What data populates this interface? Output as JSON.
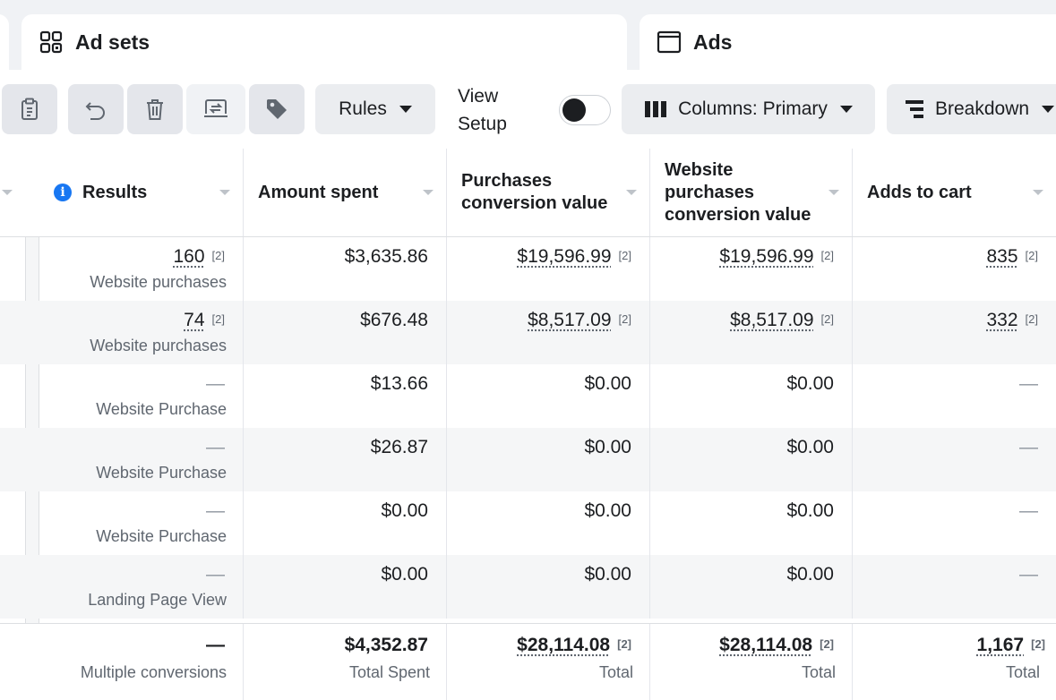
{
  "tabs": {
    "ad_sets": "Ad sets",
    "ads": "Ads"
  },
  "toolbar": {
    "rules_label": "Rules",
    "view_setup_line1": "View",
    "view_setup_line2": "Setup",
    "view_setup_toggle_on": false,
    "columns_label": "Columns: Primary",
    "breakdown_label": "Breakdown"
  },
  "table": {
    "headers": {
      "results": "Results",
      "amount_spent": "Amount spent",
      "purchases_cv_1": "Purchases",
      "purchases_cv_2": "conversion value",
      "website_cv_1": "Website",
      "website_cv_2": "purchases",
      "website_cv_3": "conversion value",
      "adds_to_cart": "Adds to cart"
    },
    "rows": [
      {
        "result": "160",
        "result_sup": "[2]",
        "result_type": "Website purchases",
        "amount": "$3,635.86",
        "pcv": "$19,596.99",
        "pcv_sup": "[2]",
        "wpcv": "$19,596.99",
        "wpcv_sup": "[2]",
        "atc": "835",
        "atc_sup": "[2]"
      },
      {
        "result": "74",
        "result_sup": "[2]",
        "result_type": "Website purchases",
        "amount": "$676.48",
        "pcv": "$8,517.09",
        "pcv_sup": "[2]",
        "wpcv": "$8,517.09",
        "wpcv_sup": "[2]",
        "atc": "332",
        "atc_sup": "[2]"
      },
      {
        "result": "—",
        "result_type": "Website Purchase",
        "amount": "$13.66",
        "pcv": "$0.00",
        "wpcv": "$0.00",
        "atc": "—"
      },
      {
        "result": "—",
        "result_type": "Website Purchase",
        "amount": "$26.87",
        "pcv": "$0.00",
        "wpcv": "$0.00",
        "atc": "—"
      },
      {
        "result": "—",
        "result_type": "Website Purchase",
        "amount": "$0.00",
        "pcv": "$0.00",
        "wpcv": "$0.00",
        "atc": "—"
      },
      {
        "result": "—",
        "result_type": "Landing Page View",
        "amount": "$0.00",
        "pcv": "$0.00",
        "wpcv": "$0.00",
        "atc": "—"
      }
    ],
    "totals": {
      "result": "—",
      "result_type": "Multiple conversions",
      "amount": "$4,352.87",
      "amount_label": "Total Spent",
      "pcv": "$28,114.08",
      "pcv_sup": "[2]",
      "pcv_label": "Total",
      "wpcv": "$28,114.08",
      "wpcv_sup": "[2]",
      "wpcv_label": "Total",
      "atc": "1,167",
      "atc_sup": "[2]",
      "atc_label": "Total"
    }
  },
  "colors": {
    "background": "#f0f2f5",
    "button_bg": "#ebedf0",
    "info_blue": "#1877f2",
    "text": "#1c1e21",
    "secondary_text": "#606770"
  }
}
